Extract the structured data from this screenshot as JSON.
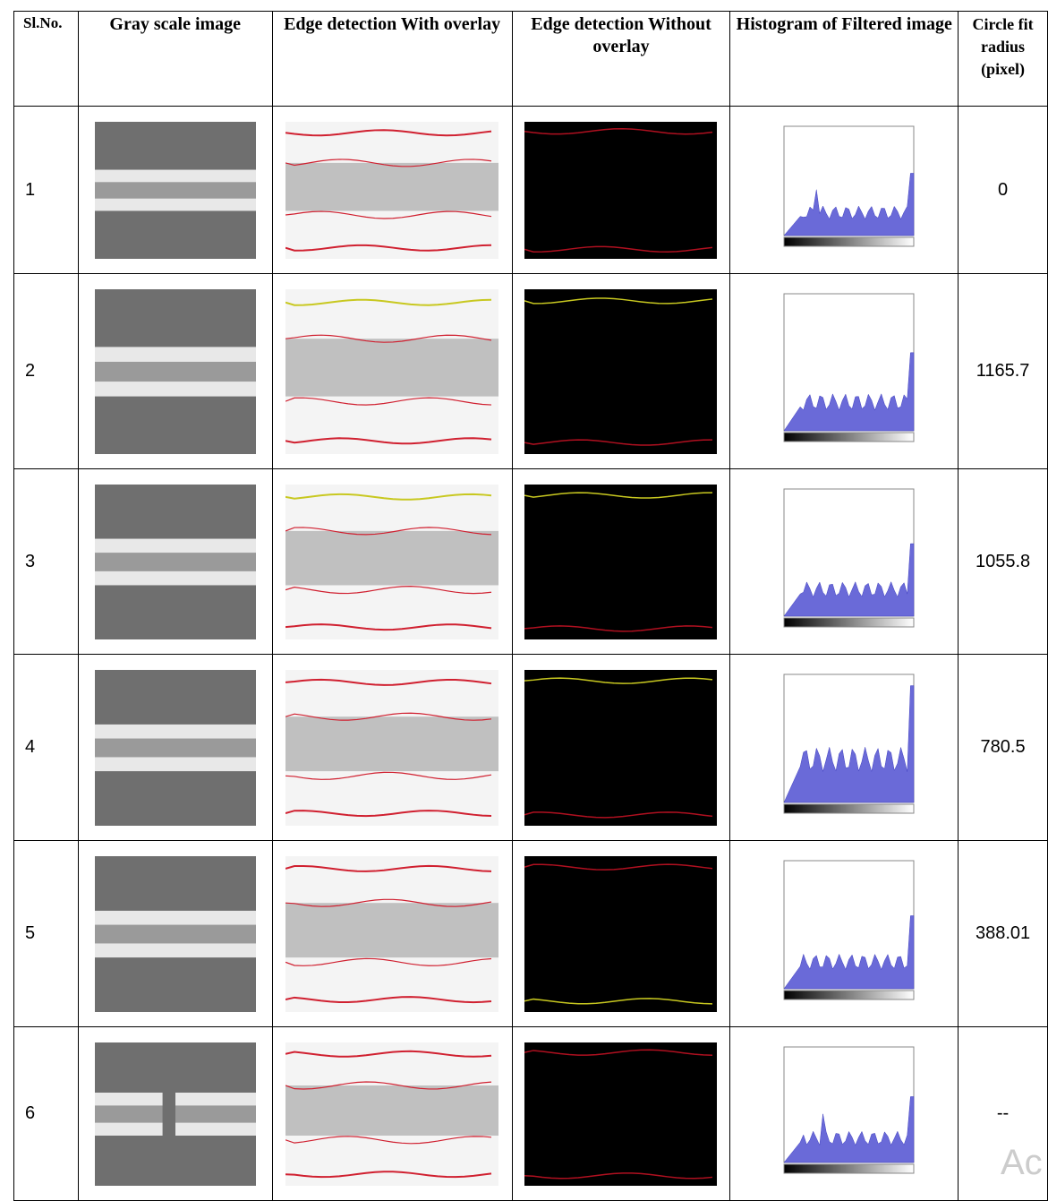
{
  "table": {
    "headers": [
      "Sl.No.",
      "Gray scale image",
      "Edge detection With overlay",
      "Edge detection Without overlay",
      "Histogram of Filtered image",
      "Circle fit radius (pixel)"
    ],
    "rows": [
      [
        "1",
        "0"
      ],
      [
        "2",
        "1165.7"
      ],
      [
        "3",
        "1055.8"
      ],
      [
        "4",
        "780.5"
      ],
      [
        "5",
        "388.01"
      ],
      [
        "6",
        "--"
      ]
    ]
  },
  "watermark": "Ac"
}
